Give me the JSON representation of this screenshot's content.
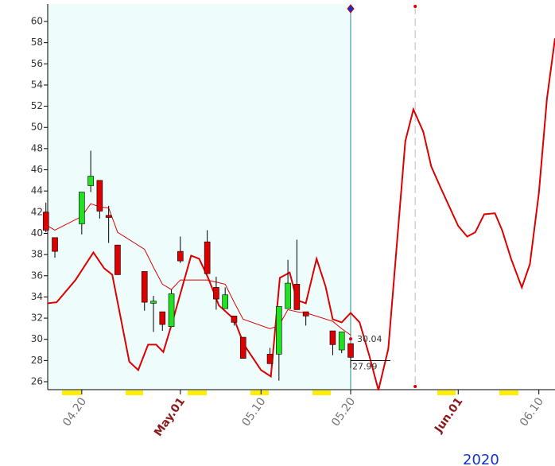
{
  "chart_data": {
    "type": "candlestick",
    "x": [
      16,
      17,
      20,
      21,
      22,
      23,
      24,
      27,
      28,
      29,
      30,
      31,
      34,
      35,
      36,
      37,
      38,
      41,
      42,
      43,
      44,
      45,
      48,
      49,
      50
    ],
    "open": [
      42.0,
      39.6,
      40.9,
      44.5,
      45.0,
      41.7,
      38.9,
      36.4,
      33.4,
      32.6,
      31.2,
      38.3,
      39.2,
      34.9,
      32.9,
      32.2,
      30.2,
      28.6,
      28.6,
      32.9,
      35.2,
      32.6,
      30.8,
      29.0,
      29.6
    ],
    "high": [
      42.9,
      39.6,
      43.9,
      47.8,
      45.0,
      42.6,
      38.9,
      36.4,
      34.1,
      32.6,
      34.7,
      39.7,
      40.3,
      35.9,
      34.9,
      32.2,
      30.2,
      29.2,
      33.1,
      37.5,
      39.4,
      32.6,
      30.8,
      30.7,
      29.6
    ],
    "low": [
      40.1,
      37.7,
      39.9,
      43.9,
      41.4,
      39.1,
      36.1,
      32.7,
      30.7,
      30.8,
      31.2,
      37.2,
      36.2,
      32.8,
      32.9,
      31.3,
      28.2,
      27.7,
      26.1,
      32.9,
      32.8,
      31.3,
      28.5,
      28.7,
      27.3
    ],
    "close": [
      40.3,
      38.3,
      43.9,
      45.4,
      42.1,
      41.5,
      36.1,
      33.5,
      33.6,
      31.4,
      34.3,
      37.4,
      36.2,
      33.8,
      34.2,
      31.6,
      28.2,
      27.7,
      33.1,
      35.3,
      32.8,
      32.2,
      29.5,
      30.7,
      28.3
    ],
    "up_color": "#22e022",
    "down_color": "#dd0000",
    "lines": [
      {
        "color": "#dd0000",
        "width": 1,
        "x": [
          16,
          17,
          20,
          21,
          22,
          23,
          24,
          27,
          28,
          29,
          30,
          31,
          34,
          35,
          36,
          37,
          38,
          41,
          42,
          43,
          44,
          45,
          48,
          49,
          50
        ],
        "values": [
          40.8,
          40.3,
          41.6,
          42.8,
          42.5,
          42.4,
          40.1,
          38.5,
          36.8,
          35.2,
          34.7,
          35.6,
          35.6,
          35.4,
          35.2,
          33.5,
          31.9,
          31.0,
          31.3,
          32.8,
          32.6,
          32.5,
          31.7,
          31.0,
          30.4
        ]
      },
      {
        "color": "#dd0000",
        "width": 2,
        "x": [
          16.2,
          17.2,
          19.3,
          21.3,
          22.5,
          23.4,
          25.3,
          26.3,
          27.4,
          28.3,
          29.1,
          30.2,
          32.2,
          33.1,
          34.1,
          35.3,
          37.0,
          38.1,
          40.0,
          41.1,
          42.1,
          43.2,
          44.0,
          45.0,
          46.2,
          47.2,
          48.0,
          49.0,
          50.0,
          51.0,
          52.1,
          53.1,
          54.2,
          56.1,
          57.0,
          58.1,
          59.0,
          60.1,
          62.0,
          63.0,
          63.9,
          64.9,
          66.1,
          66.9,
          67.9,
          69.1,
          70.0,
          71.0,
          71.9,
          72.8
        ],
        "values": [
          33.4,
          33.5,
          35.6,
          38.2,
          36.7,
          36.1,
          27.9,
          27.1,
          29.5,
          29.5,
          28.8,
          31.9,
          37.9,
          37.6,
          35.8,
          33.2,
          31.9,
          29.5,
          27.1,
          26.5,
          35.8,
          36.3,
          33.7,
          33.4,
          37.6,
          35.0,
          31.9,
          31.6,
          32.5,
          31.6,
          28.4,
          25.2,
          29.1,
          48.7,
          51.7,
          49.6,
          46.3,
          44.2,
          40.7,
          39.7,
          40.1,
          41.8,
          41.9,
          40.3,
          37.6,
          34.9,
          37.1,
          43.8,
          52.7,
          58.4
        ]
      }
    ],
    "annotations": [
      {
        "x": 50,
        "y": 30.04
      },
      {
        "x": 50,
        "y": 27.99
      }
    ],
    "shade_end": 50,
    "shade_color": "#effcfc",
    "marker_x": 57.2,
    "xlim": [
      16.2,
      72.8
    ],
    "ylim": [
      25.25,
      61.65
    ],
    "yticks": [
      26,
      28,
      30,
      32,
      34,
      36,
      38,
      40,
      42,
      44,
      46,
      48,
      50,
      52,
      54,
      56,
      58,
      60
    ],
    "xticks": [
      {
        "value": 20,
        "label": "04.20"
      },
      {
        "value": 31,
        "label": "May.01"
      },
      {
        "value": 40,
        "label": "05.10"
      },
      {
        "value": 50,
        "label": "05.20"
      },
      {
        "value": 62,
        "label": "Jun.01"
      },
      {
        "value": 71,
        "label": "06.10"
      }
    ],
    "year": "2020"
  }
}
